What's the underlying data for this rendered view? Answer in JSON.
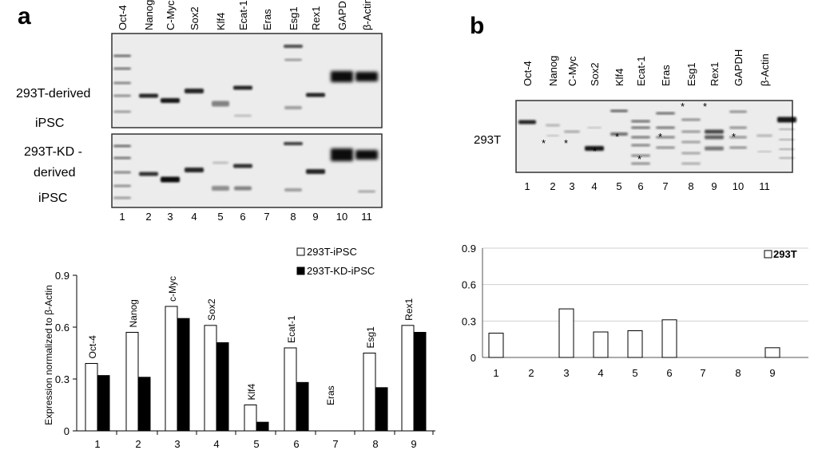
{
  "panel_a": {
    "letter": "a",
    "gel_lane_labels": [
      "Oct-4",
      "Nanog",
      "C-Myc",
      "Sox2",
      "Klf4",
      "Ecat-1",
      "Eras",
      "Esg1",
      "Rex1",
      "GAPDH",
      "β-Actin"
    ],
    "gel_lane_numbers": [
      "1",
      "2",
      "3",
      "4",
      "5",
      "6",
      "7",
      "8",
      "9",
      "10",
      "11"
    ],
    "gel1_label_lines": [
      "293T-derived",
      "iPSC"
    ],
    "gel2_label_lines": [
      "293T-KD -",
      "derived",
      "iPSC"
    ]
  },
  "panel_b": {
    "letter": "b",
    "gel_lane_labels": [
      "Oct-4",
      "Nanog",
      "C-Myc",
      "Sox2",
      "Klf4",
      "Ecat-1",
      "Eras",
      "Esg1",
      "Rex1",
      "GAPDH",
      "β-Actin"
    ],
    "gel_lane_numbers": [
      "1",
      "2",
      "3",
      "4",
      "5",
      "6",
      "7",
      "8",
      "9",
      "10",
      "11"
    ],
    "gel_label": "293T",
    "asterisk": "*"
  },
  "chart_data": [
    {
      "type": "bar",
      "categories": [
        "1",
        "2",
        "3",
        "4",
        "5",
        "6",
        "7",
        "8",
        "9"
      ],
      "bar_labels": [
        "Oct-4",
        "Nanog",
        "c-Myc",
        "Sox2",
        "Klf4",
        "Ecat-1",
        "Eras",
        "Esg1",
        "Rex1"
      ],
      "series": [
        {
          "name": "293T-iPSC",
          "values": [
            0.39,
            0.57,
            0.72,
            0.61,
            0.15,
            0.48,
            0,
            0.45,
            0.61
          ],
          "fill": "#ffffff"
        },
        {
          "name": "293T-KD-iPSC",
          "values": [
            0.32,
            0.31,
            0.65,
            0.51,
            0.05,
            0.28,
            0,
            0.25,
            0.57
          ],
          "fill": "#000000"
        }
      ],
      "ylabel": "Expression normalized to β-Actin",
      "yticks": [
        "0",
        "0.3",
        "0.6",
        "0.9"
      ],
      "ylim": [
        0,
        0.9
      ],
      "legend_position": "top-right"
    },
    {
      "type": "bar",
      "categories": [
        "1",
        "2",
        "3",
        "4",
        "5",
        "6",
        "7",
        "8",
        "9"
      ],
      "series": [
        {
          "name": "293T",
          "values": [
            0.2,
            0,
            0.4,
            0.21,
            0.22,
            0.31,
            0,
            0,
            0.08
          ],
          "fill": "#ffffff"
        }
      ],
      "yticks": [
        "0",
        "0.3",
        "0.6",
        "0.9"
      ],
      "ylim": [
        0,
        0.9
      ],
      "grid": true,
      "legend_position": "top-right"
    }
  ]
}
